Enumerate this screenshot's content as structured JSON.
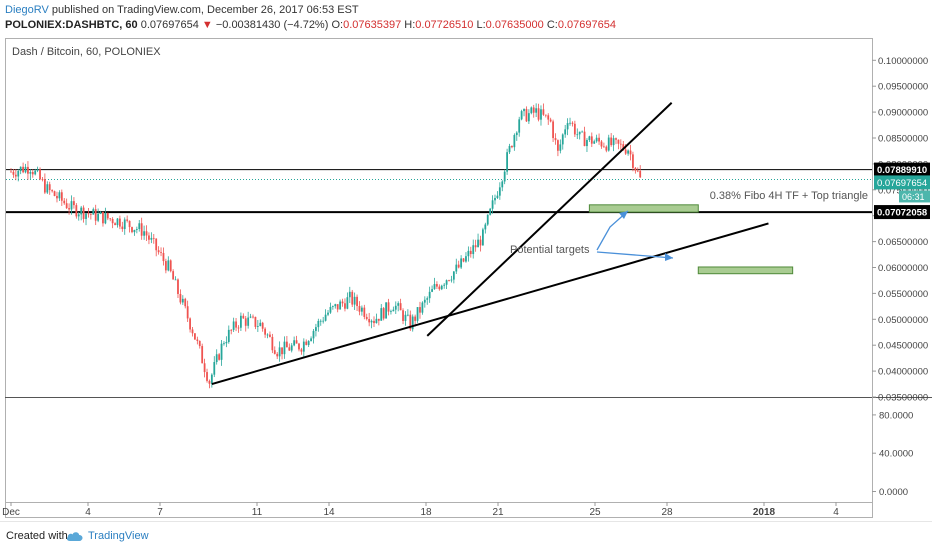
{
  "header": {
    "author": "DiegoRV",
    "published_text": "published on TradingView.com, December 26, 2017 06:53 EST"
  },
  "symbol_line": {
    "symbol": "POLONIEX:DASHBTC, 60",
    "last": "0.07697654",
    "change_arrow": "▼",
    "change": "−0.00381430 (−4.72%)",
    "o_label": "O:",
    "o": "0.07635397",
    "h_label": "H:",
    "h": "0.07726510",
    "l_label": "L:",
    "l": "0.07635000",
    "c_label": "C:",
    "c": "0.07697654"
  },
  "footer": {
    "created_with": "Created with",
    "brand": "TradingView",
    "icon": "tradingview-cloud-icon"
  },
  "chart_data": {
    "type": "candlestick",
    "title": "Dash / Bitcoin, 60, POLONIEX",
    "x_tick_labels": [
      "Dec",
      "4",
      "7",
      "11",
      "14",
      "18",
      "21",
      "25",
      "28",
      "2018",
      "4"
    ],
    "price_axis": {
      "ylim": [
        0.0345,
        0.1005
      ],
      "tick_labels": [
        "0.10000000",
        "0.09500000",
        "0.09000000",
        "0.08500000",
        "0.08000000",
        "0.07500000",
        "0.07000000",
        "0.06500000",
        "0.06000000",
        "0.05500000",
        "0.05000000",
        "0.04500000",
        "0.04000000",
        "0.03500000"
      ]
    },
    "price_tags": [
      {
        "label": "0.07889910",
        "value": 0.0789,
        "style": "dark"
      },
      {
        "label": "0.07697654",
        "value": 0.077,
        "style": "green"
      },
      {
        "label": "06:31",
        "style": "green-countdown"
      },
      {
        "label": "0.07072058",
        "value": 0.0707,
        "style": "dark"
      }
    ],
    "horizontal_levels": [
      0.0789,
      0.0707
    ],
    "last_price": 0.077,
    "price_path": [
      [
        0,
        0.0785
      ],
      [
        0.8,
        0.0795
      ],
      [
        1.5,
        0.075
      ],
      [
        2.5,
        0.0715
      ],
      [
        3.5,
        0.07
      ],
      [
        4.5,
        0.069
      ],
      [
        5.5,
        0.067
      ],
      [
        6.5,
        0.06
      ],
      [
        7.5,
        0.048
      ],
      [
        8.2,
        0.038
      ],
      [
        8.8,
        0.046
      ],
      [
        9.5,
        0.05
      ],
      [
        10.3,
        0.049
      ],
      [
        11,
        0.044
      ],
      [
        12,
        0.045
      ],
      [
        13,
        0.051
      ],
      [
        14,
        0.054
      ],
      [
        15,
        0.05
      ],
      [
        15.8,
        0.053
      ],
      [
        16.5,
        0.049
      ],
      [
        17.5,
        0.056
      ],
      [
        18.5,
        0.06
      ],
      [
        19.5,
        0.066
      ],
      [
        20.3,
        0.078
      ],
      [
        21,
        0.089
      ],
      [
        21.7,
        0.09
      ],
      [
        22.3,
        0.088
      ],
      [
        22.6,
        0.082
      ],
      [
        23,
        0.089
      ],
      [
        23.5,
        0.085
      ],
      [
        24.5,
        0.084
      ],
      [
        25.5,
        0.083
      ],
      [
        26,
        0.077
      ]
    ],
    "trendlines": [
      {
        "name": "lower",
        "from": [
          8.3,
          0.0375
        ],
        "to": [
          31.3,
          0.0685
        ]
      },
      {
        "name": "steep",
        "from": [
          17.2,
          0.0468
        ],
        "to": [
          27.3,
          0.0918
        ]
      }
    ],
    "zones": [
      {
        "x0": 23.9,
        "x1": 28.4,
        "y0": 0.0707,
        "y1": 0.0721
      },
      {
        "x0": 28.4,
        "x1": 32.3,
        "y0": 0.0588,
        "y1": 0.0601
      }
    ],
    "annotations": [
      {
        "text": "0.38% Fibo 4H TF + Top triangle"
      },
      {
        "text": "Potential targets"
      }
    ],
    "indicator_pane": {
      "tick_labels": [
        "80.0000",
        "40.0000",
        "0.0000"
      ],
      "ylim": [
        -8,
        108
      ]
    },
    "colors": {
      "up": "#26a69a",
      "down": "#ef5350",
      "level": "#000000",
      "zone_fill": "#a9cc92",
      "zone_stroke": "#4f8a3a",
      "arrow": "#4a90d9",
      "last_price_line": "#26a69a"
    }
  }
}
